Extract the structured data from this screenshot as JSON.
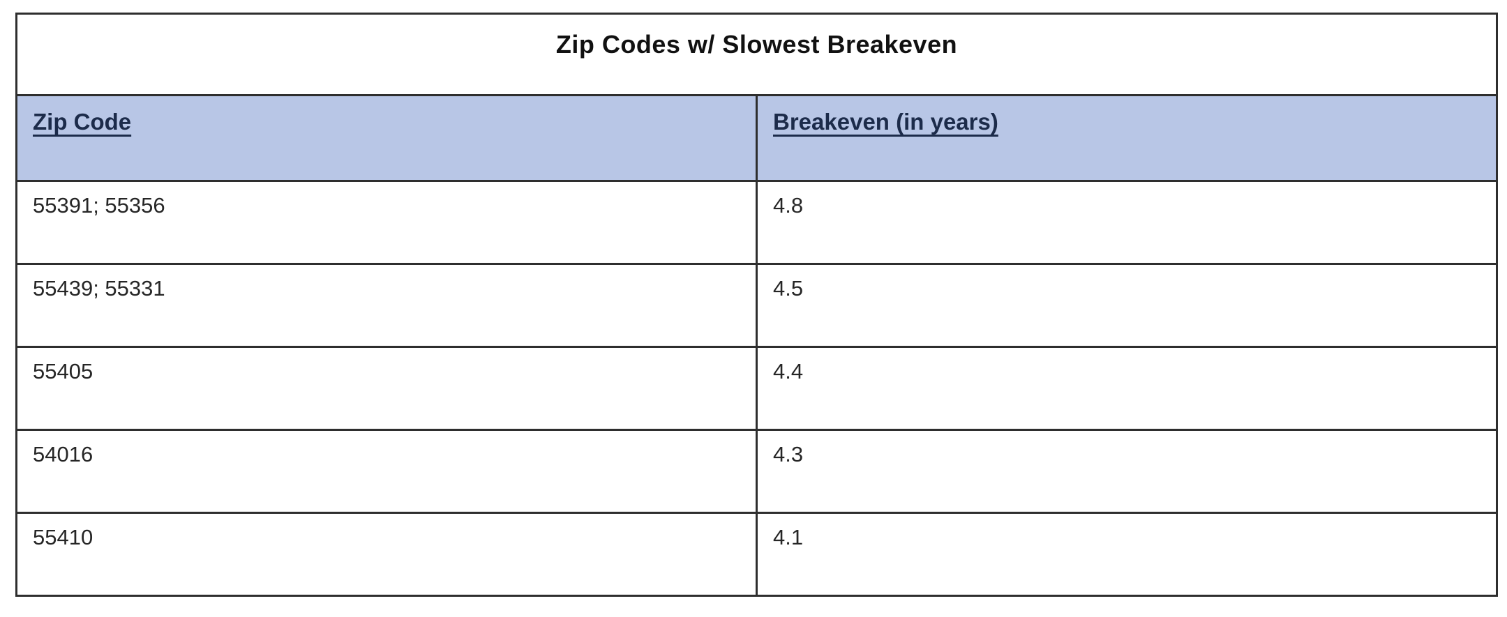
{
  "table": {
    "title": "Zip Codes w/ Slowest Breakeven",
    "columns": [
      {
        "label": "Zip Code"
      },
      {
        "label": "Breakeven (in years)"
      }
    ],
    "rows": [
      {
        "zip": "55391; 55356",
        "breakeven": "4.8"
      },
      {
        "zip": "55439; 55331",
        "breakeven": "4.5"
      },
      {
        "zip": "55405",
        "breakeven": "4.4"
      },
      {
        "zip": "54016",
        "breakeven": "4.3"
      },
      {
        "zip": "55410",
        "breakeven": "4.1"
      }
    ]
  },
  "colors": {
    "header_background": "#b8c6e6",
    "border": "#2e2e2e",
    "title_text": "#111111",
    "header_text": "#1c2b4a",
    "body_text": "#262626",
    "page_background": "#ffffff"
  },
  "chart_data": {
    "type": "table",
    "title": "Zip Codes w/ Slowest Breakeven",
    "columns": [
      "Zip Code",
      "Breakeven (in years)"
    ],
    "rows": [
      [
        "55391; 55356",
        4.8
      ],
      [
        "55439; 55331",
        4.5
      ],
      [
        "55405",
        4.4
      ],
      [
        "54016",
        4.3
      ],
      [
        "55410",
        4.1
      ]
    ]
  }
}
